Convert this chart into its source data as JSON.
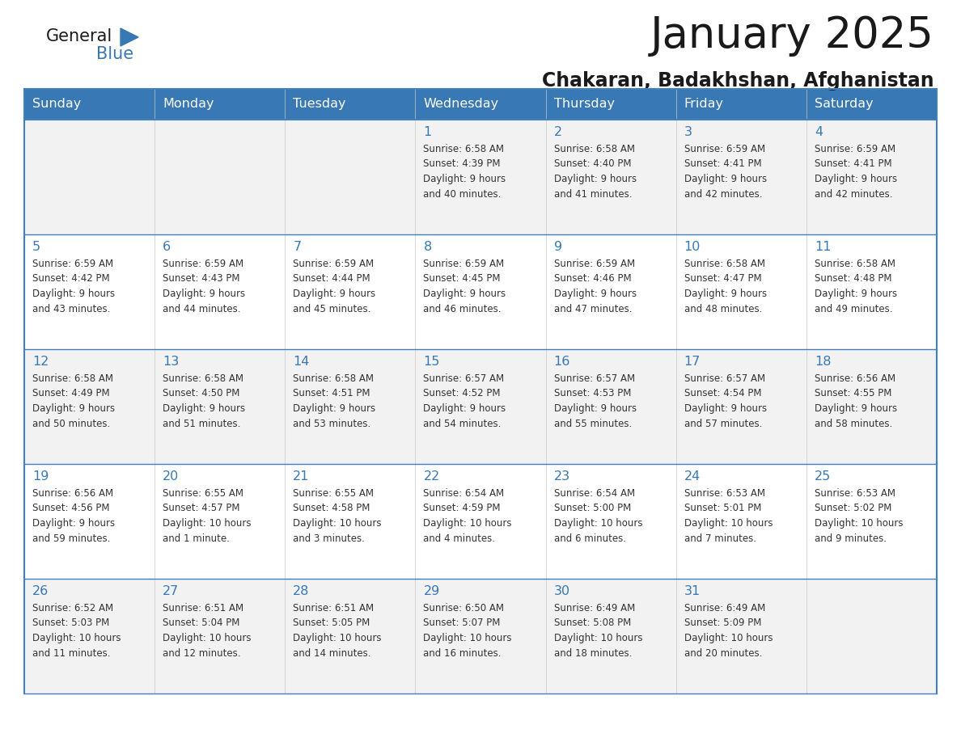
{
  "title": "January 2025",
  "subtitle": "Chakaran, Badakhshan, Afghanistan",
  "days_of_week": [
    "Sunday",
    "Monday",
    "Tuesday",
    "Wednesday",
    "Thursday",
    "Friday",
    "Saturday"
  ],
  "header_bg_color": "#3878b4",
  "header_text_color": "#ffffff",
  "row_bg_odd": "#f2f2f2",
  "row_bg_even": "#ffffff",
  "border_color": "#4080c0",
  "day_number_color": "#3878b4",
  "text_color": "#333333",
  "title_color": "#1a1a1a",
  "subtitle_color": "#1a1a1a",
  "logo_general_color": "#1a1a1a",
  "logo_blue_color": "#3878b4",
  "logo_triangle_color": "#3878b4",
  "weeks": [
    [
      {
        "day": "",
        "info": ""
      },
      {
        "day": "",
        "info": ""
      },
      {
        "day": "",
        "info": ""
      },
      {
        "day": "1",
        "info": "Sunrise: 6:58 AM\nSunset: 4:39 PM\nDaylight: 9 hours\nand 40 minutes."
      },
      {
        "day": "2",
        "info": "Sunrise: 6:58 AM\nSunset: 4:40 PM\nDaylight: 9 hours\nand 41 minutes."
      },
      {
        "day": "3",
        "info": "Sunrise: 6:59 AM\nSunset: 4:41 PM\nDaylight: 9 hours\nand 42 minutes."
      },
      {
        "day": "4",
        "info": "Sunrise: 6:59 AM\nSunset: 4:41 PM\nDaylight: 9 hours\nand 42 minutes."
      }
    ],
    [
      {
        "day": "5",
        "info": "Sunrise: 6:59 AM\nSunset: 4:42 PM\nDaylight: 9 hours\nand 43 minutes."
      },
      {
        "day": "6",
        "info": "Sunrise: 6:59 AM\nSunset: 4:43 PM\nDaylight: 9 hours\nand 44 minutes."
      },
      {
        "day": "7",
        "info": "Sunrise: 6:59 AM\nSunset: 4:44 PM\nDaylight: 9 hours\nand 45 minutes."
      },
      {
        "day": "8",
        "info": "Sunrise: 6:59 AM\nSunset: 4:45 PM\nDaylight: 9 hours\nand 46 minutes."
      },
      {
        "day": "9",
        "info": "Sunrise: 6:59 AM\nSunset: 4:46 PM\nDaylight: 9 hours\nand 47 minutes."
      },
      {
        "day": "10",
        "info": "Sunrise: 6:58 AM\nSunset: 4:47 PM\nDaylight: 9 hours\nand 48 minutes."
      },
      {
        "day": "11",
        "info": "Sunrise: 6:58 AM\nSunset: 4:48 PM\nDaylight: 9 hours\nand 49 minutes."
      }
    ],
    [
      {
        "day": "12",
        "info": "Sunrise: 6:58 AM\nSunset: 4:49 PM\nDaylight: 9 hours\nand 50 minutes."
      },
      {
        "day": "13",
        "info": "Sunrise: 6:58 AM\nSunset: 4:50 PM\nDaylight: 9 hours\nand 51 minutes."
      },
      {
        "day": "14",
        "info": "Sunrise: 6:58 AM\nSunset: 4:51 PM\nDaylight: 9 hours\nand 53 minutes."
      },
      {
        "day": "15",
        "info": "Sunrise: 6:57 AM\nSunset: 4:52 PM\nDaylight: 9 hours\nand 54 minutes."
      },
      {
        "day": "16",
        "info": "Sunrise: 6:57 AM\nSunset: 4:53 PM\nDaylight: 9 hours\nand 55 minutes."
      },
      {
        "day": "17",
        "info": "Sunrise: 6:57 AM\nSunset: 4:54 PM\nDaylight: 9 hours\nand 57 minutes."
      },
      {
        "day": "18",
        "info": "Sunrise: 6:56 AM\nSunset: 4:55 PM\nDaylight: 9 hours\nand 58 minutes."
      }
    ],
    [
      {
        "day": "19",
        "info": "Sunrise: 6:56 AM\nSunset: 4:56 PM\nDaylight: 9 hours\nand 59 minutes."
      },
      {
        "day": "20",
        "info": "Sunrise: 6:55 AM\nSunset: 4:57 PM\nDaylight: 10 hours\nand 1 minute."
      },
      {
        "day": "21",
        "info": "Sunrise: 6:55 AM\nSunset: 4:58 PM\nDaylight: 10 hours\nand 3 minutes."
      },
      {
        "day": "22",
        "info": "Sunrise: 6:54 AM\nSunset: 4:59 PM\nDaylight: 10 hours\nand 4 minutes."
      },
      {
        "day": "23",
        "info": "Sunrise: 6:54 AM\nSunset: 5:00 PM\nDaylight: 10 hours\nand 6 minutes."
      },
      {
        "day": "24",
        "info": "Sunrise: 6:53 AM\nSunset: 5:01 PM\nDaylight: 10 hours\nand 7 minutes."
      },
      {
        "day": "25",
        "info": "Sunrise: 6:53 AM\nSunset: 5:02 PM\nDaylight: 10 hours\nand 9 minutes."
      }
    ],
    [
      {
        "day": "26",
        "info": "Sunrise: 6:52 AM\nSunset: 5:03 PM\nDaylight: 10 hours\nand 11 minutes."
      },
      {
        "day": "27",
        "info": "Sunrise: 6:51 AM\nSunset: 5:04 PM\nDaylight: 10 hours\nand 12 minutes."
      },
      {
        "day": "28",
        "info": "Sunrise: 6:51 AM\nSunset: 5:05 PM\nDaylight: 10 hours\nand 14 minutes."
      },
      {
        "day": "29",
        "info": "Sunrise: 6:50 AM\nSunset: 5:07 PM\nDaylight: 10 hours\nand 16 minutes."
      },
      {
        "day": "30",
        "info": "Sunrise: 6:49 AM\nSunset: 5:08 PM\nDaylight: 10 hours\nand 18 minutes."
      },
      {
        "day": "31",
        "info": "Sunrise: 6:49 AM\nSunset: 5:09 PM\nDaylight: 10 hours\nand 20 minutes."
      },
      {
        "day": "",
        "info": ""
      }
    ]
  ]
}
